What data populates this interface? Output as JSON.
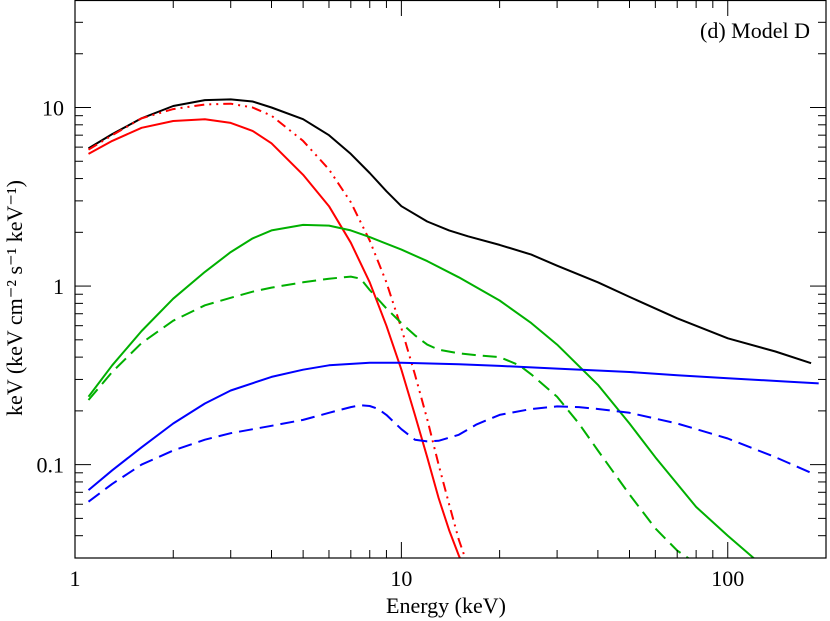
{
  "chart_data": {
    "type": "line",
    "title": "",
    "annotation": "(d) Model D",
    "xlabel": "Energy (keV)",
    "ylabel": "keV (keV cm⁻² s⁻¹ keV⁻¹)",
    "xscale": "log",
    "yscale": "log",
    "xlim": [
      1,
      200
    ],
    "ylim": [
      0.03,
      40
    ],
    "grid": false,
    "legend": "none",
    "x_tick_labels": [
      "1",
      "10",
      "100"
    ],
    "y_tick_labels": [
      "0.1",
      "1",
      "10"
    ],
    "series": [
      {
        "color": "#000000",
        "dash": "solid",
        "x": [
          1.1,
          1.3,
          1.6,
          2.0,
          2.5,
          3.0,
          3.5,
          4.0,
          5.0,
          6.0,
          7.0,
          8.0,
          9.0,
          10.0,
          12.0,
          14.0,
          16.0,
          20.0,
          25.0,
          30.0,
          40.0,
          50.0,
          70.0,
          100.0,
          140.0,
          180.0
        ],
        "y": [
          5.9,
          7.1,
          8.7,
          10.2,
          11.0,
          11.1,
          10.8,
          10.0,
          8.6,
          7.0,
          5.5,
          4.3,
          3.4,
          2.8,
          2.3,
          2.05,
          1.9,
          1.7,
          1.5,
          1.3,
          1.05,
          0.87,
          0.66,
          0.51,
          0.43,
          0.37
        ]
      },
      {
        "color": "#ff0000",
        "dash": "solid",
        "x": [
          1.1,
          1.3,
          1.6,
          2.0,
          2.5,
          3.0,
          3.5,
          4.0,
          5.0,
          6.0,
          7.0,
          8.0,
          9.0,
          10.0,
          11.0,
          12.0,
          13.0,
          14.0,
          15.0,
          15.5
        ],
        "y": [
          5.5,
          6.5,
          7.7,
          8.4,
          8.6,
          8.2,
          7.4,
          6.3,
          4.2,
          2.8,
          1.75,
          1.05,
          0.6,
          0.34,
          0.19,
          0.11,
          0.065,
          0.043,
          0.031,
          0.027
        ]
      },
      {
        "color": "#ff0000",
        "dash": "dashdotdot",
        "x": [
          1.1,
          1.3,
          1.6,
          2.0,
          2.5,
          3.0,
          3.5,
          4.0,
          5.0,
          6.0,
          7.0,
          8.0,
          9.0,
          10.0,
          11.0,
          12.0,
          13.0,
          14.0,
          15.0,
          16.0
        ],
        "y": [
          5.8,
          7.0,
          8.7,
          9.8,
          10.4,
          10.5,
          10.0,
          9.0,
          6.5,
          4.5,
          2.95,
          1.8,
          1.05,
          0.58,
          0.32,
          0.18,
          0.1,
          0.06,
          0.038,
          0.027
        ]
      },
      {
        "color": "#00b000",
        "dash": "solid",
        "x": [
          1.1,
          1.3,
          1.6,
          2.0,
          2.5,
          3.0,
          3.5,
          4.0,
          5.0,
          6.0,
          7.0,
          8.0,
          10.0,
          12.0,
          15.0,
          20.0,
          25.0,
          30.0,
          40.0,
          50.0,
          60.0,
          80.0,
          100.0,
          120.0,
          135.0
        ],
        "y": [
          0.24,
          0.36,
          0.56,
          0.85,
          1.2,
          1.55,
          1.85,
          2.05,
          2.2,
          2.18,
          2.05,
          1.88,
          1.6,
          1.38,
          1.12,
          0.83,
          0.62,
          0.47,
          0.28,
          0.17,
          0.11,
          0.058,
          0.04,
          0.03,
          0.024
        ]
      },
      {
        "color": "#00b000",
        "dash": "dashed",
        "x": [
          1.1,
          1.3,
          1.6,
          2.0,
          2.5,
          3.0,
          3.5,
          4.0,
          5.0,
          6.0,
          7.0,
          7.5,
          8.0,
          9.0,
          10.0,
          11.0,
          12.0,
          13.0,
          15.0,
          17.0,
          20.0,
          23.0,
          25.0,
          30.0,
          35.0,
          40.0,
          50.0,
          60.0,
          70.0,
          80.0
        ],
        "y": [
          0.23,
          0.33,
          0.48,
          0.64,
          0.78,
          0.86,
          0.93,
          0.98,
          1.05,
          1.1,
          1.13,
          1.1,
          0.95,
          0.75,
          0.62,
          0.53,
          0.47,
          0.44,
          0.42,
          0.41,
          0.4,
          0.36,
          0.32,
          0.24,
          0.17,
          0.12,
          0.068,
          0.044,
          0.033,
          0.028
        ]
      },
      {
        "color": "#0000ff",
        "dash": "solid",
        "x": [
          1.1,
          1.3,
          1.6,
          2.0,
          2.5,
          3.0,
          4.0,
          5.0,
          6.0,
          8.0,
          10.0,
          15.0,
          20.0,
          30.0,
          50.0,
          70.0,
          100.0,
          150.0,
          190.0
        ],
        "y": [
          0.072,
          0.093,
          0.125,
          0.17,
          0.22,
          0.26,
          0.31,
          0.34,
          0.36,
          0.372,
          0.372,
          0.365,
          0.357,
          0.345,
          0.33,
          0.317,
          0.305,
          0.292,
          0.285
        ]
      },
      {
        "color": "#0000ff",
        "dash": "dashed",
        "x": [
          1.1,
          1.3,
          1.6,
          2.0,
          2.5,
          3.0,
          4.0,
          5.0,
          6.0,
          7.0,
          7.5,
          8.0,
          8.5,
          9.0,
          10.0,
          11.0,
          12.0,
          13.0,
          15.0,
          17.0,
          20.0,
          25.0,
          30.0,
          35.0,
          40.0,
          50.0,
          70.0,
          100.0,
          140.0,
          180.0
        ],
        "y": [
          0.062,
          0.078,
          0.1,
          0.12,
          0.138,
          0.15,
          0.165,
          0.178,
          0.195,
          0.21,
          0.215,
          0.213,
          0.205,
          0.19,
          0.158,
          0.138,
          0.135,
          0.136,
          0.147,
          0.168,
          0.19,
          0.205,
          0.212,
          0.21,
          0.205,
          0.195,
          0.17,
          0.14,
          0.11,
          0.09
        ]
      }
    ]
  }
}
